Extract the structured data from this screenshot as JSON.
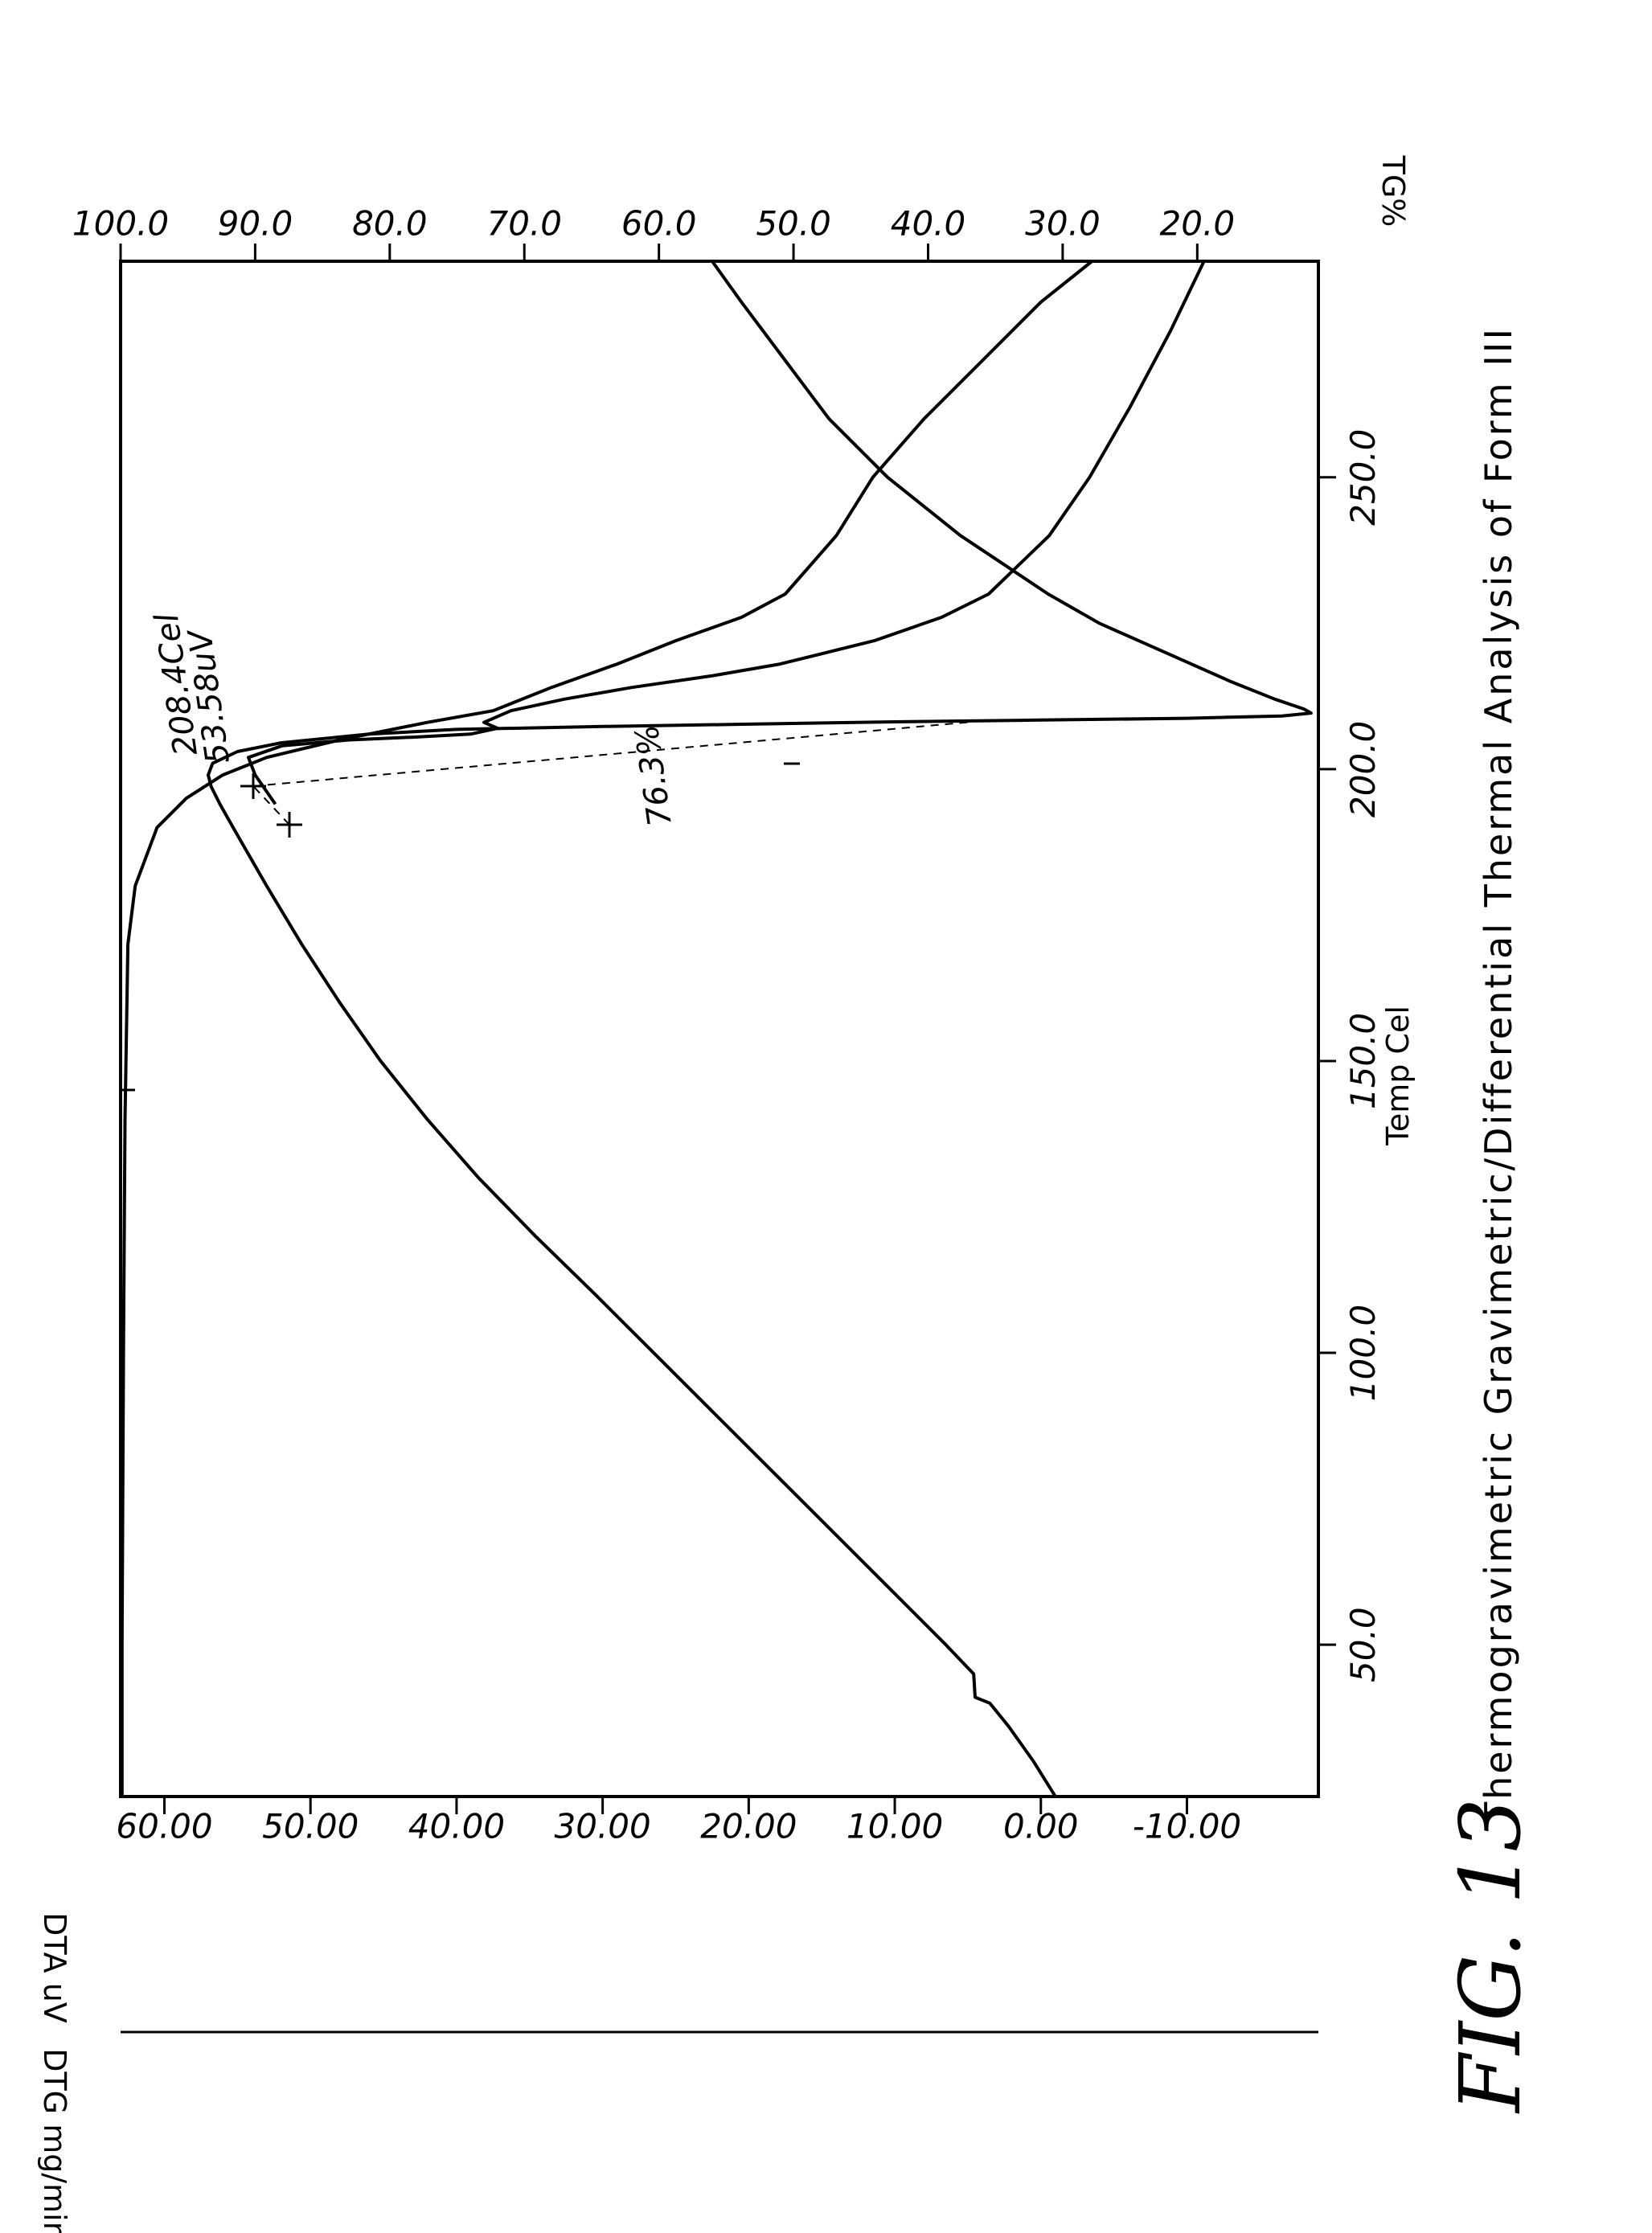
{
  "figure_label": "FIG. 13",
  "chart_data": {
    "type": "line",
    "title": "Thermogravimetric Gravimetric/Differential Thermal Analysis of Form III",
    "xlabel": "Temp Cel",
    "x_ticks": [
      "50.0",
      "100.0",
      "150.0",
      "200.0",
      "250.0"
    ],
    "xlim": [
      24,
      287
    ],
    "ylabel_left": "DTA uV",
    "ylabel_left_secondary": "DTG mg/min",
    "y_left_ticks": [
      "60.00",
      "50.00",
      "40.00",
      "30.00",
      "20.00",
      "10.00",
      "0.00",
      "-10.00"
    ],
    "y_left_lim": [
      -19,
      63
    ],
    "ylabel_right": "TG%",
    "y_right_ticks": [
      "100.0",
      "90.0",
      "80.0",
      "70.0",
      "60.0",
      "50.0",
      "40.0",
      "30.0",
      "20.0"
    ],
    "y_right_lim": [
      11,
      100
    ],
    "grid": false,
    "series": [
      {
        "axis": "left",
        "points": [
          [
            24,
            -1
          ],
          [
            30,
            0.5
          ],
          [
            36,
            2.2
          ],
          [
            40,
            3.5
          ],
          [
            41,
            4.5
          ],
          [
            45,
            4.6
          ],
          [
            50,
            6.5
          ],
          [
            60,
            10.5
          ],
          [
            70,
            14.5
          ],
          [
            80,
            18.5
          ],
          [
            90,
            22.5
          ],
          [
            100,
            26.5
          ],
          [
            110,
            30.5
          ],
          [
            120,
            34.6
          ],
          [
            130,
            38.5
          ],
          [
            140,
            42.0
          ],
          [
            150,
            45.2
          ],
          [
            160,
            48.0
          ],
          [
            170,
            50.6
          ],
          [
            180,
            53.0
          ],
          [
            190,
            55.3
          ],
          [
            194,
            56.2
          ],
          [
            197,
            56.8
          ],
          [
            199,
            57.0
          ],
          [
            201,
            56.7
          ],
          [
            203,
            55.0
          ],
          [
            204.5,
            52.0
          ],
          [
            206,
            46.0
          ],
          [
            206.8,
            40.0
          ],
          [
            207.3,
            30.0
          ],
          [
            207.7,
            20.0
          ],
          [
            208.1,
            10.0
          ],
          [
            208.4,
            0.0
          ],
          [
            208.7,
            -10.0
          ],
          [
            209.1,
            -16.5
          ],
          [
            209.6,
            -18.5
          ],
          [
            210.3,
            -18.0
          ],
          [
            212,
            -16.0
          ],
          [
            215,
            -13.0
          ],
          [
            220,
            -8.5
          ],
          [
            225,
            -4.0
          ],
          [
            230,
            -0.5
          ],
          [
            235,
            2.5
          ],
          [
            240,
            5.5
          ],
          [
            250,
            10.5
          ],
          [
            260,
            14.5
          ],
          [
            270,
            17.5
          ],
          [
            280,
            20.5
          ],
          [
            287,
            22.5
          ]
        ]
      },
      {
        "axis": "left",
        "points": [
          [
            24,
            62.9
          ],
          [
            50,
            62.9
          ],
          [
            100,
            62.8
          ],
          [
            140,
            62.7
          ],
          [
            170,
            62.5
          ],
          [
            180,
            62.0
          ],
          [
            190,
            60.5
          ],
          [
            195,
            58.5
          ],
          [
            199,
            56.0
          ],
          [
            202,
            53.0
          ],
          [
            205,
            48.0
          ],
          [
            208,
            42.0
          ],
          [
            210,
            37.5
          ],
          [
            214,
            33.5
          ],
          [
            218,
            29.0
          ],
          [
            222,
            25.0
          ],
          [
            226,
            20.5
          ],
          [
            230,
            17.5
          ],
          [
            240,
            14.0
          ],
          [
            250,
            11.5
          ],
          [
            260,
            8.0
          ],
          [
            270,
            4.0
          ],
          [
            280,
            0.0
          ],
          [
            287,
            -3.5
          ]
        ]
      },
      {
        "axis": "right",
        "points": [
          [
            194,
            88.5
          ],
          [
            199,
            90.0
          ],
          [
            202,
            90.5
          ],
          [
            204,
            88.0
          ],
          [
            205,
            83.0
          ],
          [
            205.5,
            78.0
          ],
          [
            206,
            74.0
          ],
          [
            207,
            72.0
          ],
          [
            208,
            73.0
          ],
          [
            210,
            71.0
          ],
          [
            212,
            67.0
          ],
          [
            214,
            62.0
          ],
          [
            216,
            56.0
          ],
          [
            218,
            51.0
          ],
          [
            222,
            44.0
          ],
          [
            226,
            39.0
          ],
          [
            230,
            35.5
          ],
          [
            240,
            31.0
          ],
          [
            250,
            28.0
          ],
          [
            262,
            25.0
          ],
          [
            275,
            22.0
          ],
          [
            287,
            19.5
          ]
        ]
      }
    ],
    "annotations": [
      "208.4Cel",
      "53.58uV",
      "76.3%"
    ]
  }
}
